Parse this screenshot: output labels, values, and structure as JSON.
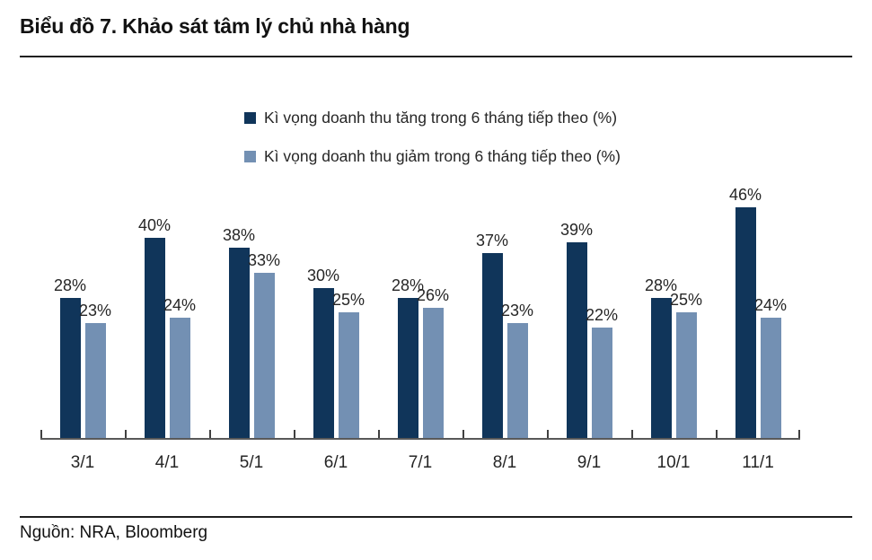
{
  "title": "Biểu đồ 7. Khảo sát tâm lý chủ nhà hàng",
  "source": "Nguồn: NRA, Bloomberg",
  "colors": {
    "increase_series": "#10355A",
    "decrease_series": "#7390B3",
    "axis": "#595959",
    "rule": "#1f1f1f"
  },
  "chart_data": {
    "type": "bar",
    "categories": [
      "3/1",
      "4/1",
      "5/1",
      "6/1",
      "7/1",
      "8/1",
      "9/1",
      "10/1",
      "11/1"
    ],
    "series": [
      {
        "name": "Kì vọng doanh thu tăng trong 6 tháng tiếp theo (%)",
        "color": "#10355A",
        "values": [
          28,
          40,
          38,
          30,
          28,
          37,
          39,
          28,
          46
        ]
      },
      {
        "name": "Kì vọng doanh thu giảm trong 6 tháng tiếp theo (%)",
        "color": "#7390B3",
        "values": [
          23,
          24,
          33,
          25,
          26,
          23,
          22,
          25,
          24
        ]
      }
    ],
    "value_suffix": "%",
    "data_labels": true,
    "grid": false,
    "ylim": [
      0,
      50
    ],
    "xlabel": "",
    "ylabel": "",
    "legend_position": "top-center"
  }
}
